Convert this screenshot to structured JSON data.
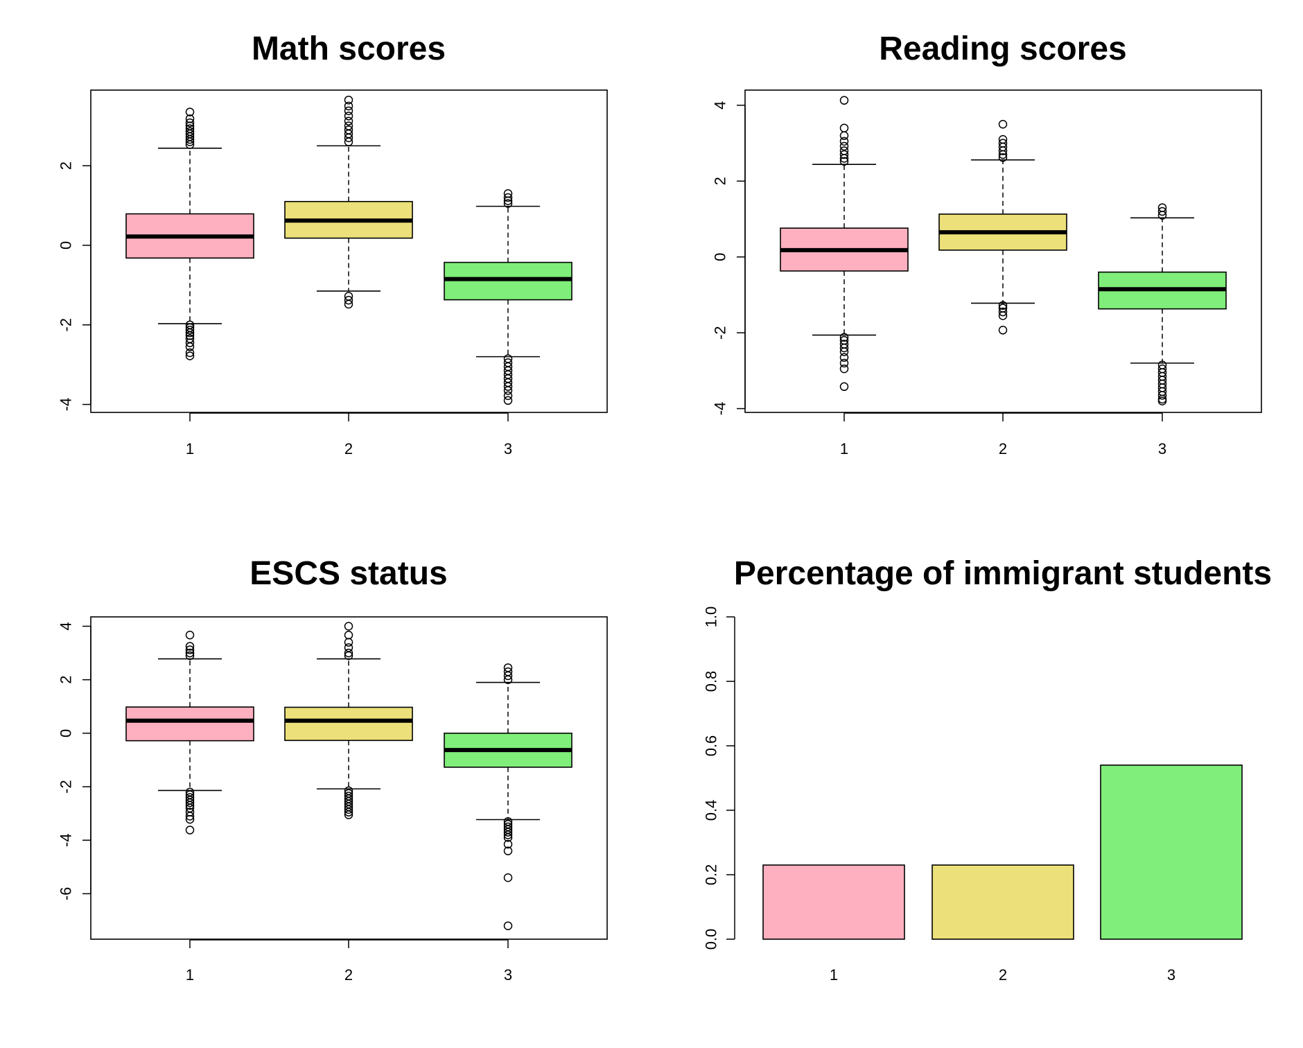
{
  "chart_data": [
    {
      "type": "boxplot",
      "title": "Math scores",
      "xlabel": "",
      "ylabel": "",
      "categories": [
        "1",
        "2",
        "3"
      ],
      "y_ticks": [
        -4,
        -2,
        0,
        2
      ],
      "ylim": [
        -4.2,
        3.9
      ],
      "colors": [
        "#FFB0C0",
        "#EBE07A",
        "#80EE7A"
      ],
      "frame": true,
      "boxes": [
        {
          "category": "1",
          "q1": -0.32,
          "median": 0.22,
          "q3": 0.79,
          "whisker_low": -1.97,
          "whisker_high": 2.44,
          "outliers": [
            3.35,
            3.18,
            3.08,
            3.0,
            2.93,
            2.86,
            2.8,
            2.73,
            2.66,
            2.6,
            2.53,
            -2.0,
            -2.07,
            -2.13,
            -2.2,
            -2.27,
            -2.35,
            -2.45,
            -2.55,
            -2.7,
            -2.78
          ]
        },
        {
          "category": "2",
          "q1": 0.18,
          "median": 0.62,
          "q3": 1.1,
          "whisker_low": -1.15,
          "whisker_high": 2.5,
          "outliers": [
            3.65,
            3.5,
            3.38,
            3.25,
            3.12,
            3.0,
            2.9,
            2.8,
            2.7,
            2.6,
            -1.28,
            -1.38,
            -1.48
          ]
        },
        {
          "category": "3",
          "q1": -1.37,
          "median": -0.85,
          "q3": -0.43,
          "whisker_low": -2.8,
          "whisker_high": 0.98,
          "outliers": [
            1.3,
            1.2,
            1.12,
            1.05,
            -2.85,
            -2.95,
            -3.05,
            -3.15,
            -3.25,
            -3.35,
            -3.45,
            -3.55,
            -3.65,
            -3.78,
            -3.9
          ]
        }
      ]
    },
    {
      "type": "boxplot",
      "title": "Reading scores",
      "xlabel": "",
      "ylabel": "",
      "categories": [
        "1",
        "2",
        "3"
      ],
      "y_ticks": [
        -4,
        -2,
        0,
        2,
        4
      ],
      "ylim": [
        -4.1,
        4.4
      ],
      "colors": [
        "#FFB0C0",
        "#EBE07A",
        "#80EE7A"
      ],
      "frame": true,
      "boxes": [
        {
          "category": "1",
          "q1": -0.37,
          "median": 0.18,
          "q3": 0.76,
          "whisker_low": -2.06,
          "whisker_high": 2.44,
          "outliers": [
            4.13,
            3.4,
            3.2,
            3.05,
            2.92,
            2.8,
            2.7,
            2.6,
            2.52,
            -2.12,
            -2.2,
            -2.3,
            -2.4,
            -2.5,
            -2.65,
            -2.8,
            -2.95,
            -3.42
          ]
        },
        {
          "category": "2",
          "q1": 0.18,
          "median": 0.65,
          "q3": 1.13,
          "whisker_low": -1.22,
          "whisker_high": 2.56,
          "outliers": [
            3.5,
            3.1,
            3.0,
            2.9,
            2.8,
            2.7,
            2.62,
            -1.28,
            -1.35,
            -1.45,
            -1.55,
            -1.93
          ]
        },
        {
          "category": "3",
          "q1": -1.37,
          "median": -0.85,
          "q3": -0.4,
          "whisker_low": -2.8,
          "whisker_high": 1.03,
          "outliers": [
            1.3,
            1.2,
            1.1,
            -2.85,
            -2.95,
            -3.05,
            -3.15,
            -3.25,
            -3.35,
            -3.45,
            -3.55,
            -3.65,
            -3.75,
            -3.8
          ]
        }
      ]
    },
    {
      "type": "boxplot",
      "title": "ESCS status",
      "xlabel": "",
      "ylabel": "",
      "categories": [
        "1",
        "2",
        "3"
      ],
      "y_ticks": [
        -6,
        -4,
        -2,
        0,
        2,
        4
      ],
      "ylim": [
        -7.7,
        4.35
      ],
      "colors": [
        "#FFB0C0",
        "#EBE07A",
        "#80EE7A"
      ],
      "frame": true,
      "boxes": [
        {
          "category": "1",
          "q1": -0.28,
          "median": 0.47,
          "q3": 0.98,
          "whisker_low": -2.14,
          "whisker_high": 2.78,
          "outliers": [
            3.67,
            3.25,
            3.12,
            3.0,
            2.9,
            -2.2,
            -2.3,
            -2.4,
            -2.5,
            -2.6,
            -2.7,
            -2.8,
            -2.95,
            -3.1,
            -3.22,
            -3.62
          ]
        },
        {
          "category": "2",
          "q1": -0.27,
          "median": 0.47,
          "q3": 0.97,
          "whisker_low": -2.08,
          "whisker_high": 2.78,
          "outliers": [
            4.0,
            3.67,
            3.4,
            3.2,
            3.0,
            2.9,
            -2.15,
            -2.25,
            -2.35,
            -2.45,
            -2.55,
            -2.65,
            -2.75,
            -2.85,
            -2.95,
            -3.05
          ]
        },
        {
          "category": "3",
          "q1": -1.27,
          "median": -0.63,
          "q3": 0.0,
          "whisker_low": -3.23,
          "whisker_high": 1.9,
          "outliers": [
            2.45,
            2.3,
            2.15,
            2.0,
            -3.3,
            -3.4,
            -3.5,
            -3.6,
            -3.7,
            -3.8,
            -3.9,
            -4.15,
            -4.4,
            -5.4,
            -7.2
          ]
        }
      ]
    },
    {
      "type": "bar",
      "title": "Percentage of immigrant students",
      "xlabel": "",
      "ylabel": "",
      "categories": [
        "1",
        "2",
        "3"
      ],
      "values": [
        0.23,
        0.23,
        0.54
      ],
      "y_ticks": [
        "0.0",
        "0.2",
        "0.4",
        "0.6",
        "0.8",
        "1.0"
      ],
      "ylim": [
        0,
        1
      ],
      "colors": [
        "#FFB0C0",
        "#EBE07A",
        "#80EE7A"
      ],
      "frame": false
    }
  ]
}
